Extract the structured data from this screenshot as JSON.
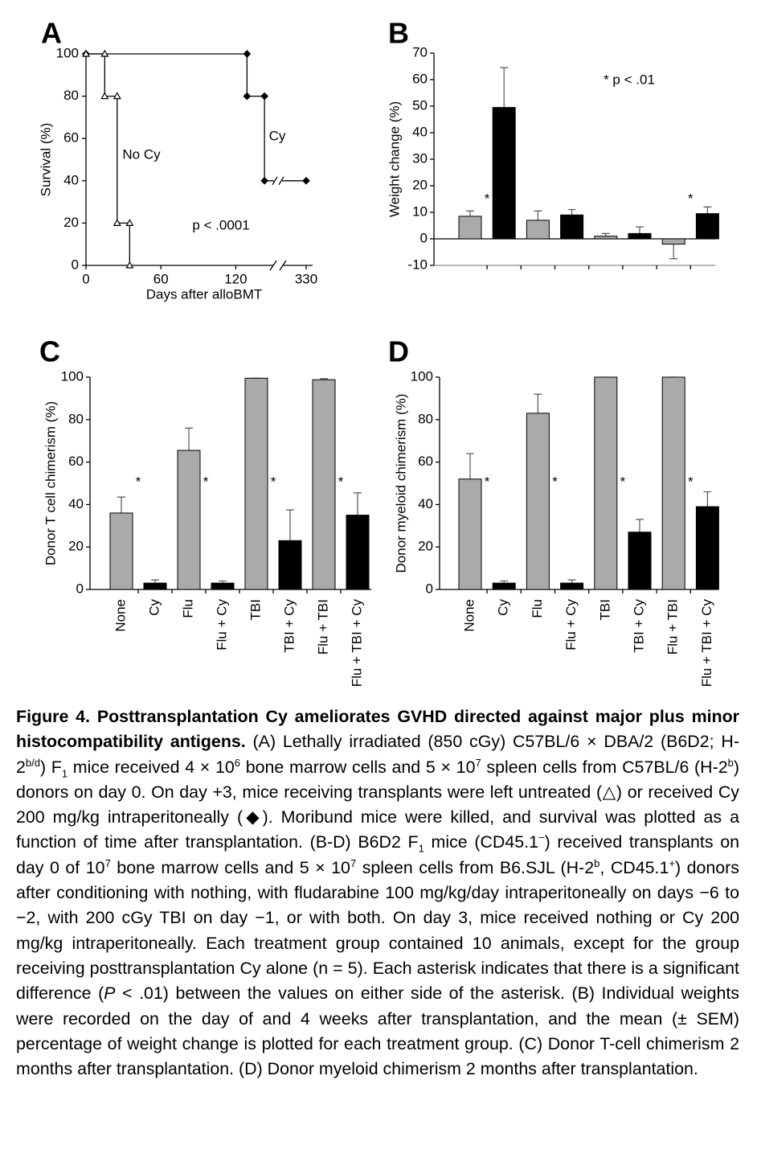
{
  "chart_data": [
    {
      "type": "line",
      "panel": "A",
      "ylabel": "Survival (%)",
      "xlabel": "Days after alloBMT",
      "xlim": [
        0,
        330
      ],
      "xbreak": [
        150,
        320
      ],
      "xticks": [
        0,
        60,
        120,
        330
      ],
      "ylim": [
        0,
        100
      ],
      "yticks": [
        0,
        20,
        40,
        60,
        80,
        100
      ],
      "annotation": "p < .0001",
      "series": [
        {
          "name": "Cy",
          "color": "#000000",
          "marker": "diamond",
          "x": [
            0,
            129,
            129,
            143,
            143,
            330
          ],
          "values": [
            100,
            100,
            80,
            80,
            40,
            40
          ]
        },
        {
          "name": "No Cy",
          "color": "#000000",
          "marker": "triangle-open",
          "x": [
            0,
            15,
            15,
            25,
            25,
            35,
            35
          ],
          "values": [
            100,
            100,
            80,
            80,
            20,
            20,
            0
          ]
        }
      ]
    },
    {
      "type": "bar",
      "panel": "B",
      "ylabel": "Weight change (%)",
      "ylim": [
        -10,
        70
      ],
      "yticks": [
        -10,
        0,
        10,
        20,
        30,
        40,
        50,
        60,
        70
      ],
      "categories": [
        null,
        null,
        null,
        null,
        null,
        null,
        null,
        null
      ],
      "values": [
        8.5,
        49.5,
        7,
        9,
        1,
        2,
        -2,
        9.5
      ],
      "errors": [
        2,
        15,
        3.5,
        2,
        1,
        2.5,
        5.5,
        2.5
      ],
      "colors": [
        "#aaaaaa",
        "#000000",
        "#aaaaaa",
        "#000000",
        "#aaaaaa",
        "#000000",
        "#aaaaaa",
        "#000000"
      ],
      "asterisks": [
        "*",
        "*"
      ],
      "note": "* p < .01"
    },
    {
      "type": "bar",
      "panel": "C",
      "ylabel": "Donor T cell chimerism (%)",
      "ylim": [
        0,
        100
      ],
      "yticks": [
        0,
        20,
        40,
        60,
        80,
        100
      ],
      "categories": [
        "None",
        "Cy",
        "Flu",
        "Flu + Cy",
        "TBI",
        "TBI + Cy",
        "Flu + TBI",
        "Flu + TBI + Cy"
      ],
      "values": [
        36,
        3,
        65.5,
        3,
        99.5,
        23,
        98.8,
        35
      ],
      "errors": [
        7.5,
        1.5,
        10.5,
        1,
        0,
        14.5,
        0.5,
        10.5
      ],
      "colors": [
        "#aaaaaa",
        "#000000",
        "#aaaaaa",
        "#000000",
        "#aaaaaa",
        "#000000",
        "#aaaaaa",
        "#000000"
      ],
      "asterisks": [
        "*",
        "*",
        "*",
        "*"
      ]
    },
    {
      "type": "bar",
      "panel": "D",
      "ylabel": "Donor myeloid chimerism (%)",
      "ylim": [
        0,
        100
      ],
      "yticks": [
        0,
        20,
        40,
        60,
        80,
        100
      ],
      "categories": [
        "None",
        "Cy",
        "Flu",
        "Flu + Cy",
        "TBI",
        "TBI + Cy",
        "Flu + TBI",
        "Flu + TBI + Cy"
      ],
      "values": [
        52,
        3,
        83,
        3,
        100,
        27,
        100,
        39
      ],
      "errors": [
        12,
        1,
        9,
        1.5,
        0,
        6,
        0,
        7
      ],
      "colors": [
        "#aaaaaa",
        "#000000",
        "#aaaaaa",
        "#000000",
        "#aaaaaa",
        "#000000",
        "#aaaaaa",
        "#000000"
      ],
      "asterisks": [
        "*",
        "*",
        "*",
        "*"
      ]
    }
  ],
  "caption": {
    "title": "Figure 4. Posttransplantation Cy ameliorates GVHD directed against major plus minor histocompatibility antigens.",
    "parts": [
      " (A) Lethally irradiated (850 cGy) C57BL/6 × DBA/2 (B6D2; H-2",
      "b/d",
      ") F",
      "1",
      " mice received 4 × 10",
      "6",
      " bone marrow cells and 5 × 10",
      "7",
      " spleen cells from C57BL/6 (H-2",
      "b",
      ") donors on day 0. On day +3, mice receiving transplants were left untreated (△) or received Cy 200 mg/kg intraperitoneally (◆). Moribund mice were killed, and survival was plotted as a function of time after transplantation. (B-D) B6D2 F",
      "1",
      " mice (CD45.1",
      "−",
      ") received transplants on day 0 of 10",
      "7",
      " bone marrow cells and 5 × 10",
      "7",
      " spleen cells from B6.SJL (H-2",
      "b",
      ", CD45.1",
      "+",
      ") donors after conditioning with nothing, with fludarabine 100 mg/kg/day intraperitoneally on days −6 to −2, with 200 cGy TBI on day −1, or with both. On day 3, mice received nothing or Cy 200 mg/kg intraperitoneally. Each treatment group contained 10 animals, except for the group receiving posttransplantation Cy alone (n = 5). Each asterisk indicates that there is a significant difference (",
      "P",
      " < .01) between the values on either side of the asterisk. (B) Individual weights were recorded on the day of and 4 weeks after transplantation, and the mean (± SEM) percentage of weight change is plotted for each treatment group. (C) Donor T-cell chimerism 2 months after transplantation. (D) Donor myeloid chimerism 2 months after transplantation."
    ]
  }
}
